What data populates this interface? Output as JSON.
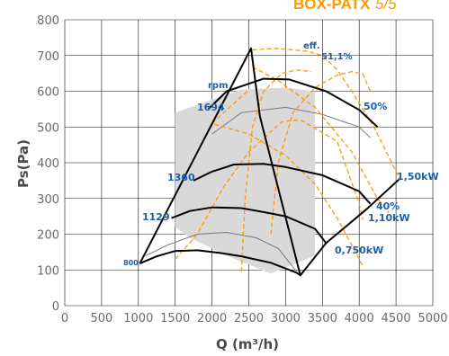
{
  "title": {
    "bold": "BOX-PATX",
    "light": "5/5"
  },
  "colors": {
    "orange": "#ff9900",
    "black": "#000000",
    "grey_area": "#d9d9d9",
    "thin_grey": "#7a7a7a",
    "grid": "#111111",
    "blue_label": "#1f5fa8"
  },
  "chart_data": {
    "type": "line",
    "xlabel": "Q (m³/h)",
    "ylabel": "Ps(Pa)",
    "xlim": [
      0,
      5000
    ],
    "ylim": [
      0,
      800
    ],
    "xticks": [
      "0",
      "500",
      "1000",
      "1500",
      "2000",
      "2500",
      "3000",
      "3500",
      "4000",
      "4500",
      "5000"
    ],
    "yticks": [
      "0",
      "100",
      "200",
      "300",
      "400",
      "500",
      "600",
      "700",
      "800"
    ],
    "grid": true,
    "operating_area": [
      [
        1500,
        540
      ],
      [
        2400,
        605
      ],
      [
        3000,
        610
      ],
      [
        3400,
        600
      ],
      [
        3400,
        410
      ],
      [
        3400,
        140
      ],
      [
        2800,
        90
      ],
      [
        2200,
        140
      ],
      [
        1700,
        190
      ],
      [
        1500,
        220
      ]
    ],
    "bold_speed_curves": [
      {
        "label": "1694",
        "points": [
          [
            1950,
            550
          ],
          [
            2200,
            600
          ],
          [
            2700,
            635
          ],
          [
            3050,
            633
          ],
          [
            3550,
            600
          ],
          [
            4000,
            548
          ],
          [
            4250,
            500
          ]
        ]
      },
      {
        "label": "1360",
        "points": [
          [
            1750,
            350
          ],
          [
            2000,
            375
          ],
          [
            2300,
            395
          ],
          [
            2700,
            397
          ],
          [
            3000,
            388
          ],
          [
            3500,
            365
          ],
          [
            4000,
            320
          ],
          [
            4150,
            285
          ]
        ]
      },
      {
        "label": "1129",
        "points": [
          [
            1450,
            245
          ],
          [
            1700,
            265
          ],
          [
            2000,
            275
          ],
          [
            2400,
            273
          ],
          [
            2700,
            262
          ],
          [
            3000,
            250
          ],
          [
            3400,
            215
          ],
          [
            3550,
            175
          ]
        ]
      },
      {
        "label": "800",
        "points": [
          [
            1020,
            118
          ],
          [
            1250,
            138
          ],
          [
            1500,
            153
          ],
          [
            1800,
            155
          ],
          [
            2100,
            148
          ],
          [
            2400,
            138
          ],
          [
            2800,
            120
          ],
          [
            3150,
            92
          ],
          [
            3200,
            85
          ]
        ]
      }
    ],
    "thin_speed_curves": [
      {
        "points": [
          [
            2000,
            480
          ],
          [
            2400,
            540
          ],
          [
            3000,
            555
          ],
          [
            3500,
            535
          ],
          [
            4000,
            500
          ],
          [
            4150,
            470
          ]
        ]
      },
      {
        "points": [
          [
            1100,
            140
          ],
          [
            1400,
            170
          ],
          [
            1800,
            200
          ],
          [
            2200,
            205
          ],
          [
            2600,
            190
          ],
          [
            2900,
            160
          ],
          [
            3150,
            95
          ]
        ]
      }
    ],
    "envelope": {
      "points": [
        [
          1020,
          118
        ],
        [
          2530,
          720
        ],
        [
          2650,
          530
        ],
        [
          3200,
          85
        ],
        [
          3550,
          175
        ],
        [
          4100,
          270
        ],
        [
          4550,
          355
        ]
      ]
    },
    "power_curves": [
      {
        "label": "1,50kW",
        "points": [
          [
            2550,
            716
          ],
          [
            2870,
            720
          ],
          [
            3300,
            712
          ],
          [
            3500,
            700
          ],
          [
            3700,
            660
          ],
          [
            3900,
            600
          ],
          [
            4200,
            500
          ],
          [
            4550,
            355
          ]
        ]
      },
      {
        "label": "1,10kW",
        "points": [
          [
            2550,
            668
          ],
          [
            2900,
            630
          ],
          [
            3400,
            555
          ],
          [
            3900,
            430
          ],
          [
            4250,
            300
          ],
          [
            4400,
            260
          ]
        ]
      },
      {
        "label": "0,750kW",
        "points": [
          [
            2480,
            600
          ],
          [
            2000,
            510
          ],
          [
            2500,
            480
          ],
          [
            3000,
            420
          ],
          [
            3400,
            340
          ],
          [
            3700,
            245
          ],
          [
            3950,
            150
          ],
          [
            4050,
            110
          ]
        ]
      }
    ],
    "efficiency_curves": [
      {
        "label": "51,1%",
        "points": [
          [
            2800,
            200
          ],
          [
            2900,
            400
          ],
          [
            3100,
            540
          ],
          [
            3400,
            610
          ],
          [
            3700,
            645
          ],
          [
            3900,
            655
          ],
          [
            4050,
            648
          ],
          [
            4150,
            600
          ]
        ]
      },
      {
        "label": "50%",
        "points": [
          [
            2400,
            95
          ],
          [
            2450,
            300
          ],
          [
            2550,
            500
          ],
          [
            2700,
            600
          ],
          [
            2950,
            650
          ],
          [
            3150,
            660
          ],
          [
            3350,
            655
          ]
        ]
      },
      {
        "label": "40%",
        "points": [
          [
            1500,
            130
          ],
          [
            1800,
            200
          ],
          [
            2150,
            330
          ],
          [
            2500,
            430
          ],
          [
            2950,
            515
          ],
          [
            3200,
            520
          ],
          [
            3700,
            460
          ],
          [
            4000,
            285
          ],
          [
            4050,
            240
          ]
        ]
      }
    ],
    "annotations": [
      "rpm",
      "eff.",
      "51,1%",
      "50%",
      "40%",
      "1,50kW",
      "1,10kW",
      "0,750kW",
      "1694",
      "1360",
      "1129",
      "800"
    ]
  }
}
